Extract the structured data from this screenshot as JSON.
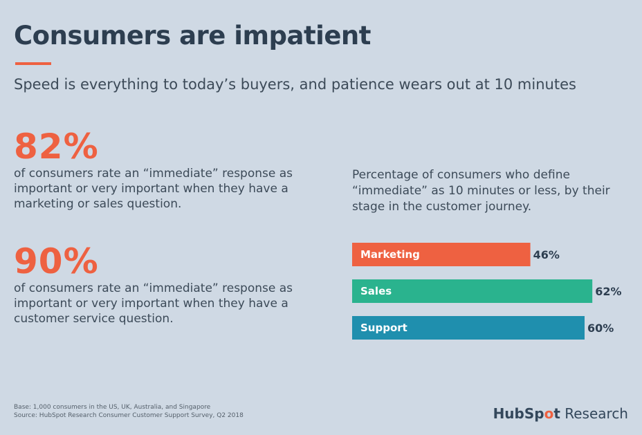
{
  "title": "Consumers are impatient",
  "subtitle": "Speed is everything to today’s buyers, and patience wears out at 10 minutes",
  "stats": [
    {
      "value": "82%",
      "text": "of consumers rate an “immediate” response as important or very important when they have a marketing or sales question."
    },
    {
      "value": "90%",
      "text": "of consumers rate an “immediate” response as important or very important when they have a customer service question."
    }
  ],
  "chart_caption": "Percentage of consumers who define “immediate” as 10 minutes or less, by their stage in the customer journey.",
  "chart_data": {
    "type": "bar",
    "orientation": "horizontal",
    "categories": [
      "Marketing",
      "Sales",
      "Support"
    ],
    "values": [
      46,
      62,
      60
    ],
    "value_labels": [
      "46%",
      "62%",
      "60%"
    ],
    "colors": [
      "#ee6141",
      "#2ab38e",
      "#1f8fae"
    ],
    "grid": false
  },
  "footnote": {
    "base": "Base: 1,000 consumers in the US, UK, Australia, and Singapore",
    "source": "Source: HubSpot Research Consumer Customer Support Survey, Q2 2018"
  },
  "brand": {
    "hub": "HubSp",
    "sprocket": "o",
    "t": "t",
    "research": " Research"
  }
}
